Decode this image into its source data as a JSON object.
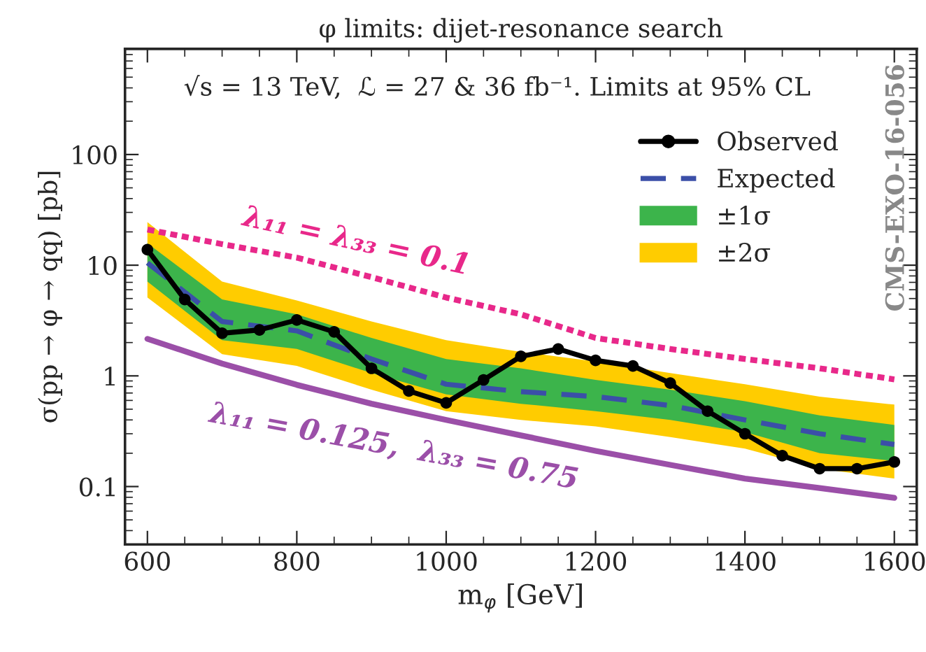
{
  "chart_data": {
    "type": "line",
    "title": "φ limits: dijet-resonance search",
    "xlabel": "m$_{φ}$ [GeV]",
    "ylabel": "σ(pp → φ → qq) [pb]",
    "log": "y",
    "xlim": [
      570,
      1630
    ],
    "ylim": [
      0.03,
      900
    ],
    "xticks": [
      600,
      800,
      1000,
      1200,
      1400,
      1600
    ],
    "yticks": [
      {
        "value": 0.1,
        "label": "0.1"
      },
      1,
      10,
      100
    ],
    "grid": false,
    "legend": "top right",
    "series": [
      {
        "name": "±2σ",
        "type": "line",
        "color": "#ffcc00",
        "x": [
          600,
          700,
          800,
          900,
          1000,
          1100,
          1200,
          1300,
          1400,
          1500,
          1600
        ],
        "values": [
          null,
          null,
          null,
          null,
          null,
          null,
          null,
          null,
          null,
          null,
          null
        ],
        "lower": [
          5.1,
          1.57,
          1.23,
          0.75,
          0.48,
          0.4,
          0.35,
          0.28,
          0.22,
          0.145,
          0.118
        ],
        "upper": [
          24.5,
          7.1,
          4.8,
          3.1,
          2.1,
          1.65,
          1.35,
          1.06,
          0.84,
          0.65,
          0.55
        ]
      },
      {
        "name": "±1σ",
        "type": "line",
        "color": "#3cb44b",
        "x": [
          600,
          700,
          800,
          900,
          1000,
          1100,
          1200,
          1300,
          1400,
          1500,
          1600
        ],
        "values": [
          null,
          null,
          null,
          null,
          null,
          null,
          null,
          null,
          null,
          null,
          null
        ],
        "lower": [
          7.1,
          2.1,
          1.75,
          1.06,
          0.68,
          0.56,
          0.48,
          0.4,
          0.31,
          0.2,
          0.17
        ],
        "upper": [
          15.8,
          4.9,
          3.6,
          2.2,
          1.42,
          1.17,
          0.92,
          0.75,
          0.59,
          0.44,
          0.36
        ]
      },
      {
        "name": "λ₁₁ = λ₃₃ = 0.1",
        "color": "#e8288a",
        "line_style": "dotted",
        "x": [
          600,
          700,
          800,
          900,
          1000,
          1100,
          1200,
          1300,
          1400,
          1500,
          1600
        ],
        "values": [
          21,
          15.5,
          11.7,
          7.8,
          5.1,
          3.6,
          2.2,
          1.75,
          1.42,
          1.17,
          0.93
        ]
      },
      {
        "name": "λ₁₁ = 0.125,  λ₃₃ = 0.75",
        "color": "#9b4fa8",
        "line_style": "solid",
        "x": [
          600,
          700,
          800,
          900,
          1000,
          1100,
          1200,
          1300,
          1400,
          1500,
          1600
        ],
        "values": [
          2.16,
          1.29,
          0.83,
          0.56,
          0.4,
          0.29,
          0.21,
          0.157,
          0.118,
          0.097,
          0.079
        ]
      },
      {
        "name": "Expected",
        "color": "#3b4fa8",
        "line_style": "dashed",
        "x": [
          600,
          700,
          800,
          900,
          1000,
          1100,
          1200,
          1300,
          1400,
          1500,
          1600
        ],
        "values": [
          10.5,
          3.1,
          2.55,
          1.42,
          0.84,
          0.72,
          0.65,
          0.54,
          0.4,
          0.3,
          0.24
        ]
      },
      {
        "name": "Observed",
        "color": "#000000",
        "line_style": "solid",
        "marker": "circle",
        "x": [
          600,
          650,
          700,
          750,
          800,
          850,
          900,
          950,
          1000,
          1050,
          1100,
          1150,
          1200,
          1250,
          1300,
          1350,
          1400,
          1450,
          1500,
          1550,
          1600
        ],
        "values": [
          13.8,
          4.9,
          2.43,
          2.6,
          3.2,
          2.5,
          1.17,
          0.73,
          0.57,
          0.92,
          1.5,
          1.75,
          1.38,
          1.23,
          0.86,
          0.48,
          0.3,
          0.19,
          0.145,
          0.145,
          0.167
        ]
      }
    ],
    "annotations": [
      "√s = 13 TeV,  ℒ = 27 & 36 fb⁻¹. Limits at 95% CL",
      "CMS-EXO-16-056"
    ]
  }
}
